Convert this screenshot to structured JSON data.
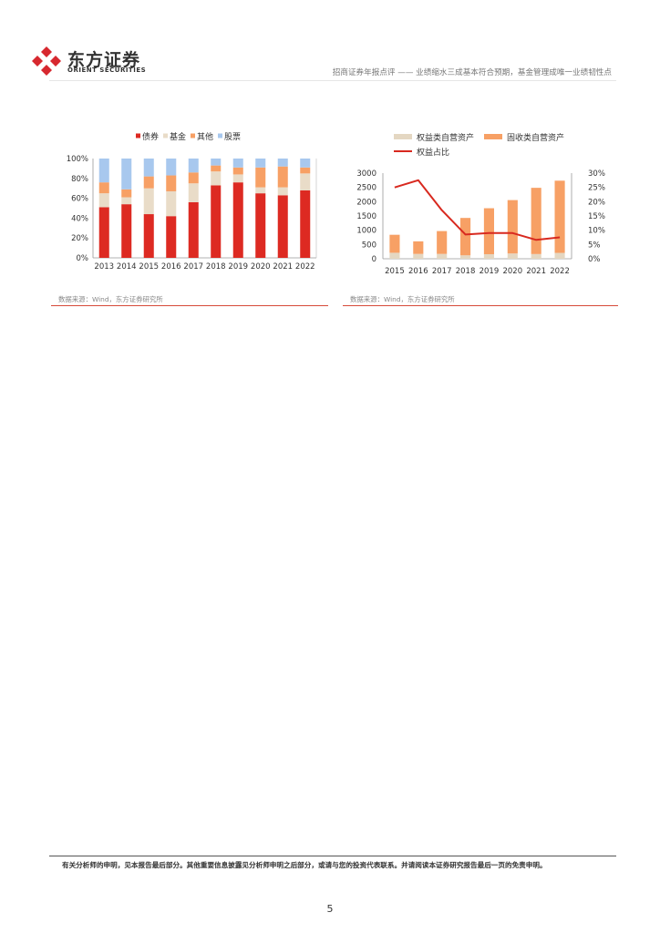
{
  "header": {
    "logo_cn": "东方证券",
    "logo_en": "ORIENT SECURITIES",
    "title": "招商证券年报点评 —— 业绩缩水三成基本符合预期，基金管理成唯一业绩韧性点"
  },
  "colors": {
    "brand_red": "#d7282f",
    "bond": "#dd2a22",
    "fund": "#e9dcc8",
    "other": "#f7a065",
    "stock": "#a8c8ee",
    "equity_asset": "#e4d7c2",
    "fixed_asset": "#f7a065",
    "equity_ratio_line": "#d8291f"
  },
  "chart_data": [
    {
      "type": "bar",
      "stacked": true,
      "percent": true,
      "categories": [
        "2013",
        "2014",
        "2015",
        "2016",
        "2017",
        "2018",
        "2019",
        "2020",
        "2021",
        "2022"
      ],
      "series": [
        {
          "name": "债券",
          "values": [
            51,
            54,
            44,
            42,
            56,
            73,
            76,
            65,
            63,
            68
          ]
        },
        {
          "name": "基金",
          "values": [
            14,
            7,
            26,
            25,
            19,
            14,
            8,
            6,
            8,
            17
          ]
        },
        {
          "name": "其他",
          "values": [
            11,
            8,
            12,
            16,
            11,
            6,
            7,
            20,
            21,
            6
          ]
        },
        {
          "name": "股票",
          "values": [
            24,
            31,
            18,
            17,
            14,
            7,
            9,
            9,
            8,
            9
          ]
        }
      ],
      "legend": [
        "债券",
        "基金",
        "其他",
        "股票"
      ],
      "yticks": [
        "0%",
        "20%",
        "40%",
        "60%",
        "80%",
        "100%"
      ],
      "ylim": [
        0,
        100
      ],
      "legend_position": "top",
      "source": "数据来源：Wind，东方证券研究所"
    },
    {
      "type": "bar-line",
      "categories": [
        "2015",
        "2016",
        "2017",
        "2018",
        "2019",
        "2020",
        "2021",
        "2022"
      ],
      "series": [
        {
          "name": "权益类自营资产",
          "type": "bar",
          "values": [
            210,
            170,
            170,
            120,
            160,
            185,
            165,
            205
          ]
        },
        {
          "name": "固收类自营资产",
          "type": "bar",
          "values": [
            630,
            440,
            800,
            1310,
            1610,
            1870,
            2320,
            2530
          ]
        },
        {
          "name": "权益占比",
          "type": "line",
          "axis": "right",
          "values": [
            25,
            27.5,
            17,
            8.5,
            9,
            9,
            6.6,
            7.5
          ]
        }
      ],
      "legend": [
        "权益类自营资产",
        "固收类自营资产",
        "权益占比"
      ],
      "yticks_left": [
        "0",
        "500",
        "1000",
        "1500",
        "2000",
        "2500",
        "3000"
      ],
      "yticks_right": [
        "0%",
        "5%",
        "10%",
        "15%",
        "20%",
        "25%",
        "30%"
      ],
      "ylim_left": [
        0,
        3000
      ],
      "ylim_right": [
        0,
        30
      ],
      "legend_position": "top",
      "source": "数据来源：Wind，东方证券研究所"
    }
  ],
  "footer": {
    "disclaimer": "有关分析师的申明，见本报告最后部分。其他重要信息披露见分析师申明之后部分，或请与您的投资代表联系。并请阅读本证券研究报告最后一页的免责申明。",
    "page_number": "5"
  }
}
